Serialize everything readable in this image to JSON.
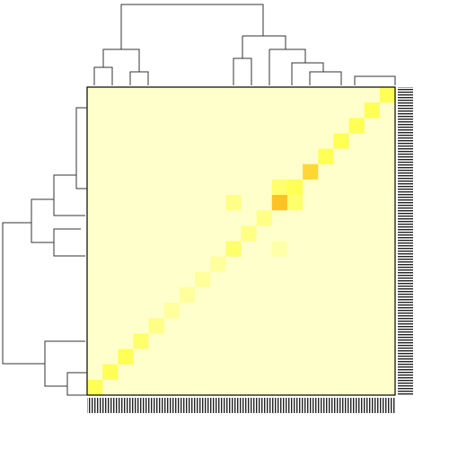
{
  "chart_data": {
    "type": "heatmap",
    "colorscale": [
      "#ffffcc",
      "#ffff55",
      "#ff9900"
    ],
    "zlim": [
      0,
      1
    ],
    "matrix": [
      [
        0,
        0,
        0,
        0,
        0,
        0,
        0,
        0,
        0,
        0,
        0,
        0,
        0,
        0,
        0,
        0,
        0,
        0,
        0,
        0.5
      ],
      [
        0,
        0,
        0,
        0,
        0,
        0,
        0,
        0,
        0,
        0,
        0,
        0,
        0,
        0,
        0,
        0,
        0,
        0,
        0.5,
        0
      ],
      [
        0,
        0,
        0,
        0,
        0,
        0,
        0,
        0,
        0,
        0,
        0,
        0,
        0,
        0,
        0,
        0,
        0,
        0.5,
        0,
        0
      ],
      [
        0,
        0,
        0,
        0,
        0,
        0,
        0,
        0,
        0,
        0,
        0,
        0,
        0,
        0,
        0,
        0,
        0.5,
        0,
        0,
        0
      ],
      [
        0,
        0,
        0,
        0,
        0,
        0,
        0,
        0,
        0,
        0,
        0,
        0,
        0,
        0,
        0,
        0.5,
        0,
        0,
        0,
        0
      ],
      [
        0,
        0,
        0,
        0,
        0,
        0,
        0,
        0,
        0,
        0,
        0,
        0,
        0,
        0,
        0.7,
        0,
        0,
        0,
        0,
        0
      ],
      [
        0,
        0,
        0,
        0,
        0,
        0,
        0,
        0,
        0,
        0,
        0,
        0,
        0.4,
        0.5,
        0,
        0,
        0,
        0,
        0,
        0
      ],
      [
        0,
        0,
        0,
        0,
        0,
        0,
        0,
        0,
        0,
        0.3,
        0,
        0,
        0.8,
        0.4,
        0,
        0,
        0,
        0,
        0,
        0
      ],
      [
        0,
        0,
        0,
        0,
        0,
        0,
        0,
        0,
        0,
        0,
        0,
        0.3,
        0,
        0,
        0,
        0,
        0,
        0,
        0,
        0
      ],
      [
        0,
        0,
        0,
        0,
        0,
        0,
        0,
        0,
        0,
        0,
        0.3,
        0,
        0,
        0,
        0,
        0,
        0,
        0,
        0,
        0
      ],
      [
        0,
        0,
        0,
        0,
        0,
        0,
        0,
        0,
        0,
        0.4,
        0,
        0,
        0.15,
        0,
        0,
        0,
        0,
        0,
        0,
        0
      ],
      [
        0,
        0,
        0,
        0,
        0,
        0,
        0,
        0,
        0.2,
        0,
        0,
        0,
        0,
        0,
        0,
        0,
        0,
        0,
        0,
        0
      ],
      [
        0,
        0,
        0,
        0,
        0,
        0,
        0,
        0.2,
        0,
        0,
        0,
        0,
        0,
        0,
        0,
        0,
        0,
        0,
        0,
        0
      ],
      [
        0,
        0,
        0,
        0,
        0,
        0,
        0.2,
        0,
        0,
        0,
        0,
        0,
        0,
        0,
        0,
        0,
        0,
        0,
        0,
        0
      ],
      [
        0,
        0,
        0,
        0,
        0,
        0.2,
        0,
        0,
        0,
        0,
        0,
        0,
        0,
        0,
        0,
        0,
        0,
        0,
        0,
        0
      ],
      [
        0,
        0,
        0,
        0,
        0.3,
        0,
        0,
        0,
        0,
        0,
        0,
        0,
        0,
        0,
        0,
        0,
        0,
        0,
        0,
        0
      ],
      [
        0,
        0,
        0,
        0.4,
        0,
        0,
        0,
        0,
        0,
        0,
        0,
        0,
        0,
        0,
        0,
        0,
        0,
        0,
        0,
        0
      ],
      [
        0,
        0,
        0.5,
        0,
        0,
        0,
        0,
        0,
        0,
        0,
        0,
        0,
        0,
        0,
        0,
        0,
        0,
        0,
        0,
        0
      ],
      [
        0,
        0.5,
        0,
        0,
        0,
        0,
        0,
        0,
        0,
        0,
        0,
        0,
        0,
        0,
        0,
        0,
        0,
        0,
        0,
        0
      ],
      [
        0.5,
        0,
        0,
        0,
        0,
        0,
        0,
        0,
        0,
        0,
        0,
        0,
        0,
        0,
        0,
        0,
        0,
        0,
        0,
        0
      ]
    ]
  }
}
